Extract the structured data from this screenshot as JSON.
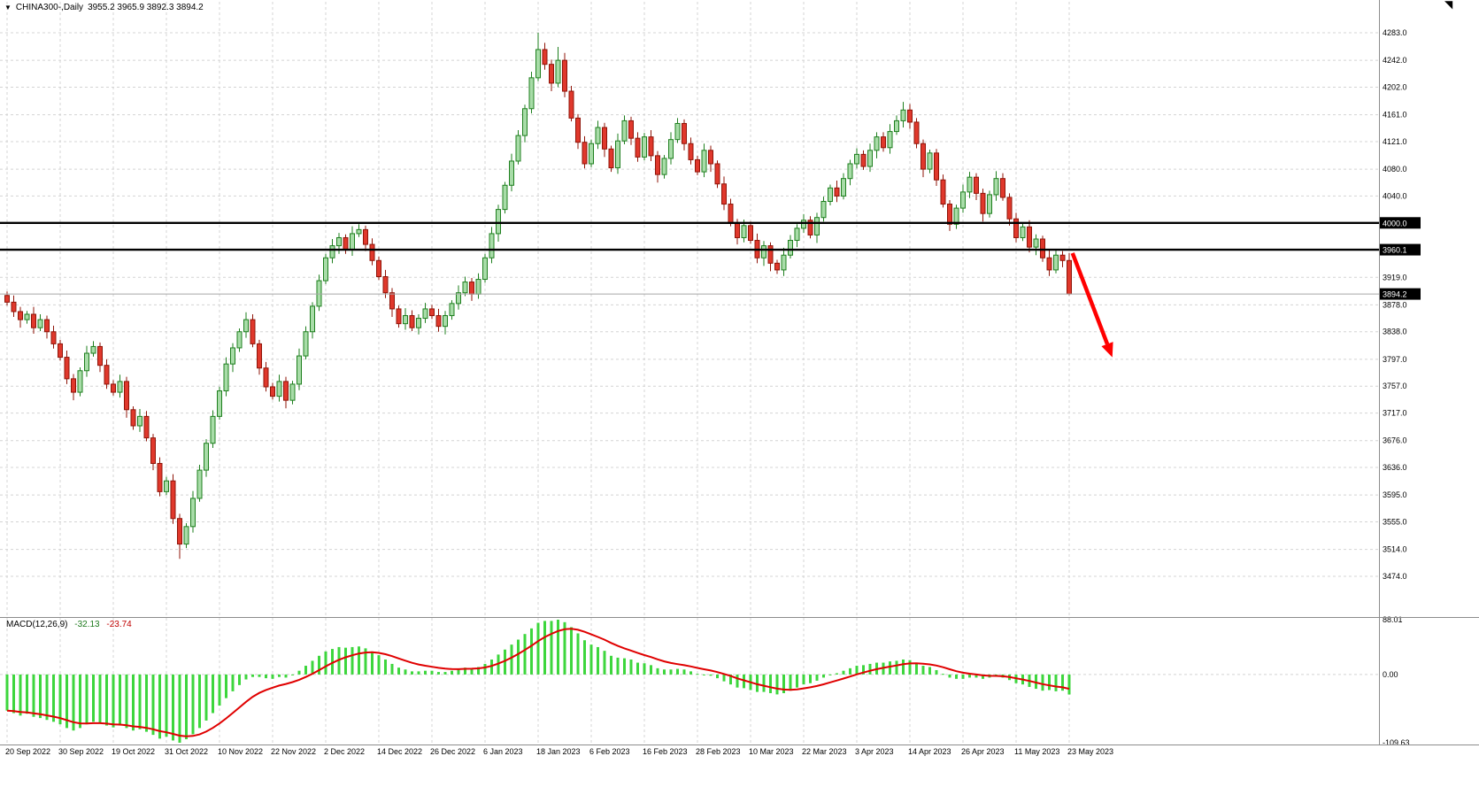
{
  "header": {
    "marker": "▼",
    "title": "CHINA300-,Daily",
    "ohlc": "3955.2 3965.9 3892.3 3894.2",
    "corner_marker": "◥"
  },
  "chart_data": {
    "type": "candlestick",
    "symbol": "CHINA300",
    "timeframe": "Daily",
    "ohlc_display": {
      "open": "3955.2",
      "high": "3965.9",
      "low": "3892.3",
      "close": "3894.2"
    },
    "x_labels": [
      "20 Sep 2022",
      "30 Sep 2022",
      "19 Oct 2022",
      "31 Oct 2022",
      "10 Nov 2022",
      "22 Nov 2022",
      "2 Dec 2022",
      "14 Dec 2022",
      "26 Dec 2022",
      "6 Jan 2023",
      "18 Jan 2023",
      "6 Feb 2023",
      "16 Feb 2023",
      "28 Feb 2023",
      "10 Mar 2023",
      "22 Mar 2023",
      "3 Apr 2023",
      "14 Apr 2023",
      "26 Apr 2023",
      "11 May 2023",
      "23 May 2023"
    ],
    "x_label_step": 8,
    "price_ticks": [
      "4283.0",
      "4242.0",
      "4202.0",
      "4161.0",
      "4121.0",
      "4080.0",
      "4040.0",
      "3919.0",
      "3878.0",
      "3838.0",
      "3797.0",
      "3757.0",
      "3717.0",
      "3676.0",
      "3636.0",
      "3595.0",
      "3555.0",
      "3514.0",
      "3474.0"
    ],
    "ylim": [
      3474.0,
      4283.0
    ],
    "hlines": [
      {
        "price": 4000.0,
        "label": "4000.0"
      },
      {
        "price": 3960.1,
        "label": "3960.1"
      }
    ],
    "bid_line": {
      "price": 3894.2,
      "label": "3894.2"
    },
    "candles": [
      [
        3892,
        3898,
        3877,
        3882
      ],
      [
        3882,
        3892,
        3860,
        3868
      ],
      [
        3868,
        3875,
        3844,
        3856
      ],
      [
        3856,
        3869,
        3850,
        3864
      ],
      [
        3864,
        3875,
        3835,
        3844
      ],
      [
        3844,
        3864,
        3839,
        3856
      ],
      [
        3856,
        3862,
        3828,
        3838
      ],
      [
        3838,
        3847,
        3813,
        3820
      ],
      [
        3820,
        3826,
        3795,
        3800
      ],
      [
        3800,
        3810,
        3760,
        3768
      ],
      [
        3768,
        3775,
        3736,
        3748
      ],
      [
        3748,
        3785,
        3742,
        3780
      ],
      [
        3780,
        3817,
        3771,
        3806
      ],
      [
        3806,
        3824,
        3801,
        3816
      ],
      [
        3816,
        3822,
        3778,
        3788
      ],
      [
        3788,
        3797,
        3753,
        3760
      ],
      [
        3760,
        3766,
        3743,
        3748
      ],
      [
        3748,
        3774,
        3740,
        3764
      ],
      [
        3764,
        3771,
        3710,
        3722
      ],
      [
        3722,
        3727,
        3692,
        3698
      ],
      [
        3698,
        3723,
        3689,
        3712
      ],
      [
        3712,
        3720,
        3675,
        3680
      ],
      [
        3680,
        3686,
        3632,
        3642
      ],
      [
        3642,
        3651,
        3593,
        3600
      ],
      [
        3600,
        3622,
        3595,
        3616
      ],
      [
        3616,
        3626,
        3552,
        3560
      ],
      [
        3560,
        3567,
        3500,
        3522
      ],
      [
        3522,
        3553,
        3516,
        3548
      ],
      [
        3548,
        3601,
        3539,
        3590
      ],
      [
        3590,
        3640,
        3585,
        3632
      ],
      [
        3632,
        3678,
        3622,
        3672
      ],
      [
        3672,
        3721,
        3665,
        3712
      ],
      [
        3712,
        3756,
        3707,
        3750
      ],
      [
        3750,
        3800,
        3742,
        3790
      ],
      [
        3790,
        3821,
        3778,
        3814
      ],
      [
        3814,
        3843,
        3808,
        3838
      ],
      [
        3838,
        3867,
        3829,
        3856
      ],
      [
        3856,
        3864,
        3815,
        3820
      ],
      [
        3820,
        3826,
        3774,
        3784
      ],
      [
        3784,
        3793,
        3749,
        3756
      ],
      [
        3756,
        3762,
        3737,
        3742
      ],
      [
        3742,
        3774,
        3734,
        3764
      ],
      [
        3764,
        3771,
        3724,
        3736
      ],
      [
        3736,
        3765,
        3730,
        3760
      ],
      [
        3760,
        3813,
        3751,
        3802
      ],
      [
        3802,
        3846,
        3797,
        3838
      ],
      [
        3838,
        3882,
        3828,
        3876
      ],
      [
        3876,
        3923,
        3869,
        3914
      ],
      [
        3914,
        3954,
        3909,
        3948
      ],
      [
        3948,
        3976,
        3940,
        3966
      ],
      [
        3966,
        3985,
        3954,
        3978
      ],
      [
        3978,
        3983,
        3954,
        3960
      ],
      [
        3960,
        3995,
        3951,
        3984
      ],
      [
        3984,
        3998,
        3979,
        3990
      ],
      [
        3990,
        3996,
        3958,
        3968
      ],
      [
        3968,
        3977,
        3937,
        3944
      ],
      [
        3944,
        3950,
        3915,
        3920
      ],
      [
        3920,
        3930,
        3888,
        3896
      ],
      [
        3896,
        3903,
        3860,
        3872
      ],
      [
        3872,
        3877,
        3844,
        3850
      ],
      [
        3850,
        3873,
        3841,
        3862
      ],
      [
        3862,
        3870,
        3839,
        3844
      ],
      [
        3844,
        3864,
        3834,
        3858
      ],
      [
        3858,
        3881,
        3851,
        3872
      ],
      [
        3872,
        3878,
        3857,
        3862
      ],
      [
        3862,
        3872,
        3838,
        3846
      ],
      [
        3846,
        3869,
        3834,
        3862
      ],
      [
        3862,
        3885,
        3856,
        3880
      ],
      [
        3880,
        3907,
        3871,
        3896
      ],
      [
        3896,
        3920,
        3891,
        3912
      ],
      [
        3912,
        3918,
        3884,
        3894
      ],
      [
        3894,
        3925,
        3887,
        3916
      ],
      [
        3916,
        3954,
        3911,
        3948
      ],
      [
        3948,
        3994,
        3940,
        3984
      ],
      [
        3984,
        4027,
        3972,
        4020
      ],
      [
        4020,
        4061,
        4014,
        4056
      ],
      [
        4056,
        4103,
        4047,
        4092
      ],
      [
        4092,
        4138,
        4087,
        4130
      ],
      [
        4130,
        4176,
        4120,
        4170
      ],
      [
        4170,
        4225,
        4163,
        4216
      ],
      [
        4216,
        4283,
        4211,
        4258
      ],
      [
        4258,
        4268,
        4228,
        4236
      ],
      [
        4236,
        4243,
        4196,
        4208
      ],
      [
        4208,
        4262,
        4202,
        4242
      ],
      [
        4242,
        4253,
        4187,
        4196
      ],
      [
        4196,
        4204,
        4151,
        4156
      ],
      [
        4156,
        4162,
        4110,
        4120
      ],
      [
        4120,
        4129,
        4081,
        4088
      ],
      [
        4088,
        4124,
        4083,
        4118
      ],
      [
        4118,
        4152,
        4110,
        4142
      ],
      [
        4142,
        4149,
        4098,
        4110
      ],
      [
        4110,
        4115,
        4076,
        4082
      ],
      [
        4082,
        4133,
        4073,
        4122
      ],
      [
        4122,
        4160,
        4117,
        4152
      ],
      [
        4152,
        4158,
        4116,
        4126
      ],
      [
        4126,
        4135,
        4091,
        4098
      ],
      [
        4098,
        4134,
        4093,
        4128
      ],
      [
        4128,
        4138,
        4092,
        4100
      ],
      [
        4100,
        4107,
        4060,
        4072
      ],
      [
        4072,
        4101,
        4066,
        4096
      ],
      [
        4096,
        4135,
        4087,
        4124
      ],
      [
        4124,
        4156,
        4119,
        4148
      ],
      [
        4148,
        4154,
        4108,
        4118
      ],
      [
        4118,
        4127,
        4087,
        4094
      ],
      [
        4094,
        4100,
        4071,
        4076
      ],
      [
        4076,
        4118,
        4068,
        4108
      ],
      [
        4108,
        4115,
        4076,
        4088
      ],
      [
        4088,
        4093,
        4052,
        4058
      ],
      [
        4058,
        4069,
        4019,
        4028
      ],
      [
        4028,
        4036,
        3995,
        4000
      ],
      [
        4000,
        4006,
        3968,
        3978
      ],
      [
        3978,
        4005,
        3971,
        3996
      ],
      [
        3996,
        4002,
        3969,
        3974
      ],
      [
        3974,
        3984,
        3940,
        3948
      ],
      [
        3948,
        3973,
        3936,
        3966
      ],
      [
        3966,
        3971,
        3928,
        3940
      ],
      [
        3940,
        3945,
        3924,
        3930
      ],
      [
        3930,
        3963,
        3921,
        3952
      ],
      [
        3952,
        3982,
        3947,
        3974
      ],
      [
        3974,
        3998,
        3964,
        3992
      ],
      [
        3992,
        4013,
        3985,
        4004
      ],
      [
        4004,
        4010,
        3977,
        3982
      ],
      [
        3982,
        4015,
        3970,
        4008
      ],
      [
        4008,
        4039,
        4002,
        4032
      ],
      [
        4032,
        4057,
        4026,
        4052
      ],
      [
        4052,
        4063,
        4031,
        4040
      ],
      [
        4040,
        4074,
        4035,
        4066
      ],
      [
        4066,
        4094,
        4056,
        4088
      ],
      [
        4088,
        4111,
        4081,
        4102
      ],
      [
        4102,
        4108,
        4079,
        4084
      ],
      [
        4084,
        4118,
        4076,
        4108
      ],
      [
        4108,
        4135,
        4096,
        4128
      ],
      [
        4128,
        4135,
        4106,
        4112
      ],
      [
        4112,
        4147,
        4103,
        4136
      ],
      [
        4136,
        4160,
        4131,
        4152
      ],
      [
        4152,
        4180,
        4142,
        4168
      ],
      [
        4168,
        4177,
        4140,
        4150
      ],
      [
        4150,
        4156,
        4111,
        4118
      ],
      [
        4118,
        4124,
        4068,
        4080
      ],
      [
        4080,
        4109,
        4074,
        4104
      ],
      [
        4104,
        4110,
        4055,
        4064
      ],
      [
        4064,
        4072,
        4023,
        4028
      ],
      [
        4028,
        4034,
        3988,
        3998
      ],
      [
        3998,
        4027,
        3991,
        4022
      ],
      [
        4022,
        4057,
        4015,
        4046
      ],
      [
        4046,
        4076,
        4037,
        4068
      ],
      [
        4068,
        4074,
        4034,
        4044
      ],
      [
        4044,
        4051,
        4002,
        4014
      ],
      [
        4014,
        4048,
        4008,
        4042
      ],
      [
        4042,
        4077,
        4033,
        4066
      ],
      [
        4066,
        4074,
        4033,
        4038
      ],
      [
        4038,
        4044,
        3996,
        4006
      ],
      [
        4006,
        4015,
        3971,
        3978
      ],
      [
        3978,
        4000,
        3973,
        3994
      ],
      [
        3994,
        4004,
        3956,
        3964
      ],
      [
        3964,
        3983,
        3952,
        3976
      ],
      [
        3976,
        3981,
        3942,
        3948
      ],
      [
        3948,
        3959,
        3921,
        3930
      ],
      [
        3930,
        3960,
        3925,
        3952
      ],
      [
        3952,
        3958,
        3934,
        3944
      ],
      [
        3944,
        3955,
        3892.3,
        3894.2
      ]
    ],
    "annotations": {
      "arrow": {
        "from_bar": 160.5,
        "from_price": 3955,
        "to_bar": 166.5,
        "to_price": 3800,
        "color": "#FF0000"
      }
    },
    "macd": {
      "label": "MACD(12,26,9)",
      "macd_value": "-32.13",
      "signal_value": "-23.74",
      "ticks": [
        "88.01",
        "0.00",
        "-109.63"
      ],
      "ylim": [
        -109.63,
        88.01
      ],
      "signal_ema_period": 9,
      "histogram": [
        -58,
        -62,
        -66,
        -63,
        -68,
        -70,
        -73,
        -76,
        -80,
        -86,
        -90,
        -86,
        -80,
        -76,
        -78,
        -82,
        -85,
        -82,
        -86,
        -90,
        -88,
        -92,
        -97,
        -103,
        -100,
        -106,
        -109.63,
        -104,
        -96,
        -86,
        -74,
        -62,
        -50,
        -38,
        -27,
        -17,
        -8,
        -4,
        -4,
        -6,
        -7,
        -4,
        -5,
        0,
        6,
        14,
        22,
        30,
        37,
        41,
        44,
        43,
        44,
        45,
        42,
        37,
        31,
        24,
        17,
        11,
        8,
        5,
        5,
        6,
        6,
        4,
        4,
        6,
        8,
        11,
        10,
        12,
        17,
        24,
        32,
        40,
        48,
        56,
        65,
        74,
        83,
        86,
        86,
        88.01,
        84,
        76,
        66,
        55,
        48,
        44,
        38,
        30,
        27,
        26,
        24,
        19,
        18,
        15,
        10,
        8,
        8,
        9,
        8,
        5,
        1,
        0,
        -2,
        -6,
        -11,
        -16,
        -21,
        -22,
        -25,
        -28,
        -28,
        -30,
        -32,
        -30,
        -26,
        -21,
        -16,
        -14,
        -10,
        -5,
        0,
        2,
        6,
        10,
        14,
        15,
        17,
        19,
        19,
        21,
        22,
        24,
        23,
        19,
        14,
        12,
        7,
        1,
        -5,
        -7,
        -7,
        -5,
        -5,
        -7,
        -5,
        -3,
        -5,
        -9,
        -14,
        -16,
        -20,
        -23,
        -26,
        -25,
        -27,
        -26,
        -32.13
      ]
    },
    "colors": {
      "bull_fill": "#A8DCA8",
      "bull_border": "#1E7F1E",
      "bear_fill": "#E0382C",
      "bear_border": "#8F1408",
      "grid": "#D4D4D4",
      "hline": "#000000",
      "bid_line_color": "#A8A8A8",
      "tag_bg": "#000000",
      "tag_fg": "#FFFFFF",
      "macd_hist": "#3DD63D",
      "macd_signal": "#E00000",
      "axis_text": "#000000",
      "separator": "#8C8C8C",
      "arrow": "#FF0000"
    }
  }
}
